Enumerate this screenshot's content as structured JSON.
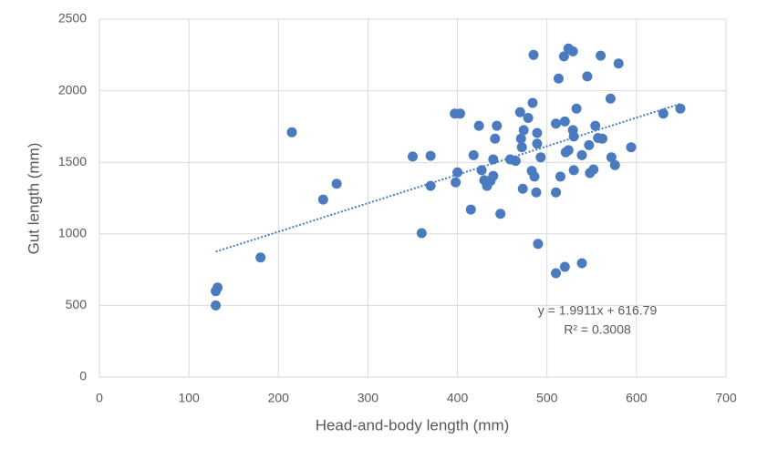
{
  "chart_data": {
    "type": "scatter",
    "x_label": "Head-and-body length (mm)",
    "y_label": "Gut length (mm)",
    "color": "#4a7bbf",
    "grid": true,
    "xlim": [
      0,
      700
    ],
    "xticks": [
      0,
      100,
      200,
      300,
      400,
      500,
      600,
      700
    ],
    "ylim": [
      0,
      2500
    ],
    "yticks": [
      0,
      500,
      1000,
      1500,
      2000,
      2500
    ],
    "x": [
      130,
      130,
      132,
      180,
      215,
      250,
      265,
      350,
      360,
      370,
      370,
      397,
      403,
      400,
      398,
      415,
      418,
      424,
      427,
      430,
      433,
      437,
      440,
      440,
      442,
      444,
      448,
      459,
      465,
      470,
      471,
      472,
      473,
      474,
      479,
      483,
      486,
      484,
      485,
      489,
      489,
      488,
      490,
      493,
      510,
      510,
      510,
      513,
      515,
      519,
      520,
      520,
      521,
      524,
      524,
      529,
      529,
      530,
      530,
      533,
      539,
      539,
      545,
      547,
      548,
      552,
      554,
      557,
      560,
      562,
      571,
      572,
      576,
      580,
      594,
      630,
      649
    ],
    "values": [
      500,
      600,
      625,
      835,
      1710,
      1240,
      1350,
      1540,
      1005,
      1545,
      1335,
      1840,
      1840,
      1430,
      1360,
      1170,
      1550,
      1755,
      1445,
      1375,
      1335,
      1370,
      1405,
      1520,
      1665,
      1755,
      1140,
      1520,
      1510,
      1850,
      1665,
      1605,
      1315,
      1725,
      1810,
      1440,
      1400,
      1915,
      2250,
      1705,
      1630,
      1290,
      930,
      1535,
      1770,
      1290,
      725,
      2085,
      1400,
      2240,
      1785,
      770,
      1570,
      1585,
      2295,
      1725,
      2275,
      1680,
      1445,
      1875,
      1550,
      795,
      2100,
      1620,
      1425,
      1450,
      1755,
      1670,
      2245,
      1665,
      1945,
      1535,
      1480,
      2190,
      1605,
      1840,
      1875
    ],
    "trendline": {
      "slope": 1.9911,
      "intercept": 616.79,
      "label": "y = 1.9911x + 616.79",
      "r_squared_label": "R² = 0.3008"
    }
  }
}
